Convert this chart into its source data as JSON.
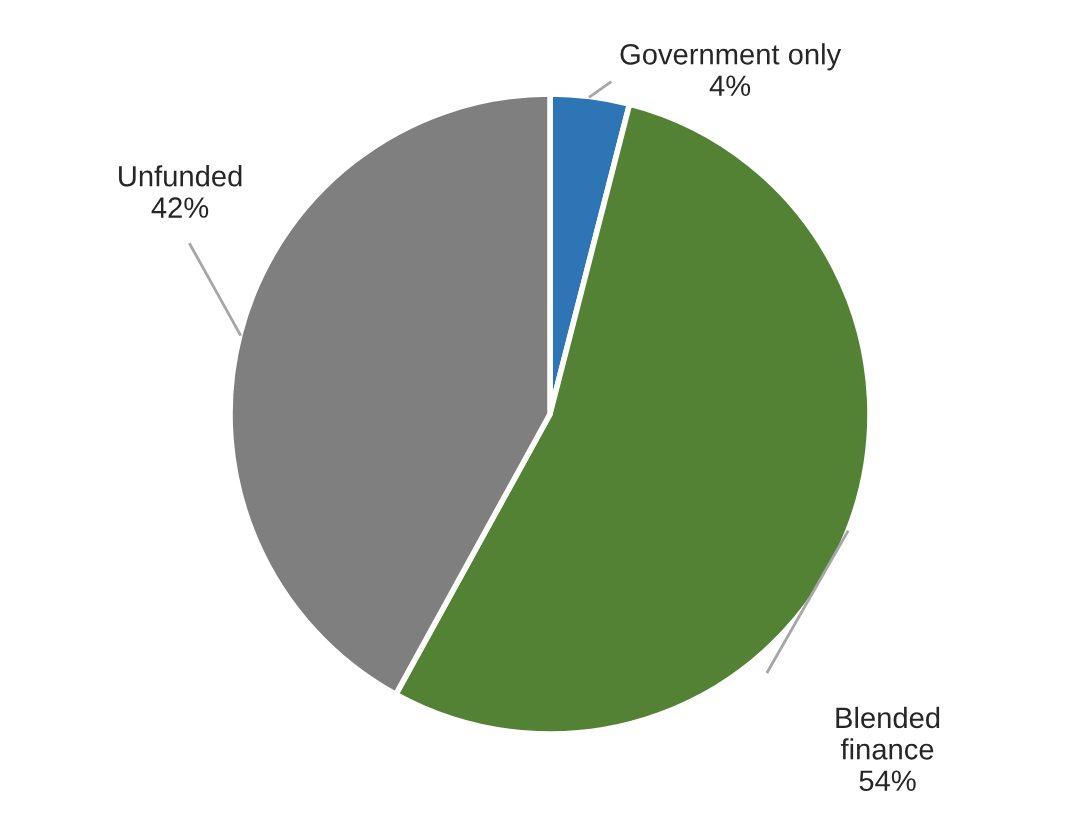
{
  "chart_data": {
    "type": "pie",
    "categories": [
      "Government only",
      "Blended finance",
      "Unfunded"
    ],
    "values": [
      4,
      54,
      42
    ],
    "value_labels": [
      "4%",
      "54%",
      "42%"
    ],
    "colors": [
      "#2e75b6",
      "#548235",
      "#7f7f7f"
    ],
    "legend": false
  }
}
